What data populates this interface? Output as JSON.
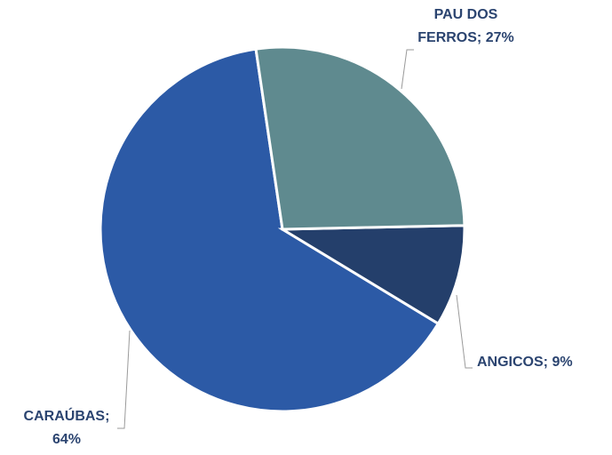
{
  "chart_data": {
    "type": "pie",
    "categories": [
      "PAU DOS FERROS",
      "ANGICOS",
      "CARAÚBAS"
    ],
    "values": [
      27,
      9,
      64
    ],
    "value_labels": [
      "27%",
      "9%",
      "64%"
    ],
    "label_separator": "; ",
    "colors": [
      "#5f8a8f",
      "#243f6b",
      "#2c5aa6"
    ]
  }
}
